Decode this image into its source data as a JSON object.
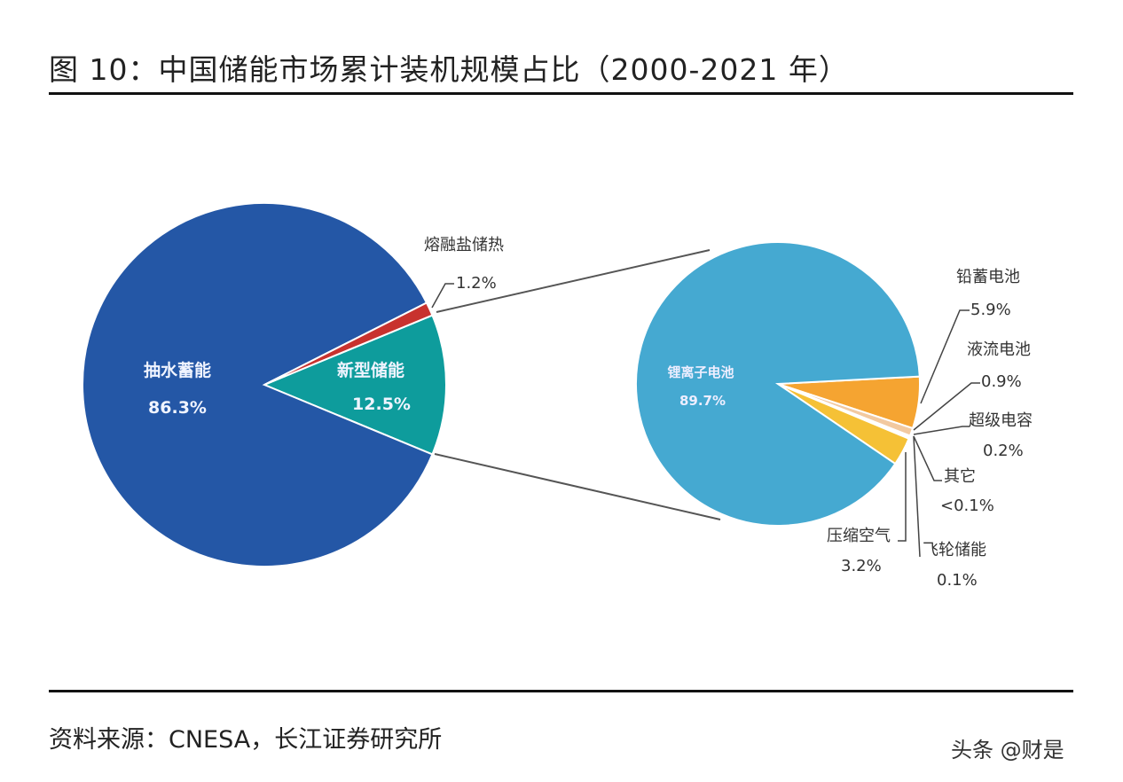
{
  "title": "图 10：中国储能市场累计装机规模占比（2000-2021 年）",
  "source": "资料来源：CNESA，长江证券研究所",
  "watermark": "头条 @财是",
  "chart_data": [
    {
      "type": "pie",
      "slices": [
        {
          "label": "抽水蓄能",
          "value": 86.3,
          "value_label": "86.3%",
          "color": "#2457A6"
        },
        {
          "label": "熔融盐储热",
          "value": 1.2,
          "value_label": "1.2%",
          "color": "#C8322E"
        },
        {
          "label": "新型储能",
          "value": 12.5,
          "value_label": "12.5%",
          "color": "#0E9C9C"
        }
      ],
      "exploded_into_next": "新型储能"
    },
    {
      "type": "pie",
      "slices": [
        {
          "label": "锂离子电池",
          "value": 89.7,
          "value_label": "89.7%",
          "color": "#45A9D1"
        },
        {
          "label": "铅蓄电池",
          "value": 5.9,
          "value_label": "5.9%",
          "color": "#F5A431"
        },
        {
          "label": "液流电池",
          "value": 0.9,
          "value_label": "0.9%",
          "color": "#F2C9A0"
        },
        {
          "label": "超级电容",
          "value": 0.2,
          "value_label": "0.2%",
          "color": "#E0545A"
        },
        {
          "label": "其它",
          "value": 0.05,
          "value_label": "<0.1%",
          "color": "#F4B6A0"
        },
        {
          "label": "飞轮储能",
          "value": 0.1,
          "value_label": "0.1%",
          "color": "#F0E0B0"
        },
        {
          "label": "压缩空气",
          "value": 3.2,
          "value_label": "3.2%",
          "color": "#F5C136"
        }
      ]
    }
  ]
}
